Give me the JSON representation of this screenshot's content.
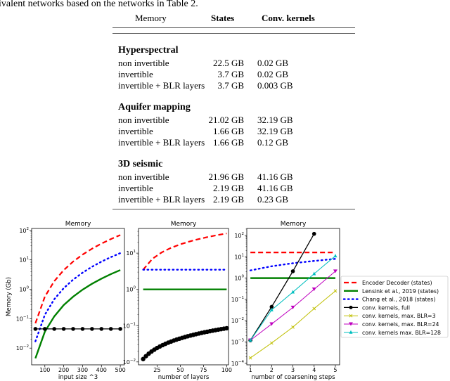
{
  "intro_text": "ivalent networks based on the networks in Table 2.",
  "table": {
    "headers": [
      "Memory",
      "States",
      "Conv. kernels"
    ],
    "sections": [
      {
        "title": "Hyperspectral",
        "rows": [
          [
            "non invertible",
            "22.5 GB",
            "0.02 GB"
          ],
          [
            "invertible",
            "3.7 GB",
            "0.02 GB"
          ],
          [
            "invertible + BLR layers",
            "3.7 GB",
            "0.003 GB"
          ]
        ]
      },
      {
        "title": "Aquifer mapping",
        "rows": [
          [
            "non invertible",
            "21.02 GB",
            "32.19 GB"
          ],
          [
            "invertible",
            "1.66 GB",
            "32.19 GB"
          ],
          [
            "invertible + BLR layers",
            "1.66 GB",
            "0.12 GB"
          ]
        ]
      },
      {
        "title": "3D seismic",
        "rows": [
          [
            "non invertible",
            "21.96 GB",
            "41.16 GB"
          ],
          [
            "invertible",
            "2.19 GB",
            "41.16 GB"
          ],
          [
            "invertible + BLR layers",
            "2.19 GB",
            "0.23 GB"
          ]
        ]
      }
    ]
  },
  "chart_data": [
    {
      "type": "line",
      "title": "Memory",
      "xlabel": "input size ^3",
      "ylabel": "Memory (Gb)",
      "yscale": "log",
      "xlim": [
        30,
        522
      ],
      "ylim": [
        0.0027,
        117
      ],
      "xticks": [
        100,
        200,
        300,
        400,
        500
      ],
      "yticks": [
        -2,
        -1,
        0,
        1,
        2
      ],
      "series": [
        {
          "key": "enc",
          "x": [
            50,
            100,
            150,
            200,
            250,
            300,
            350,
            400,
            450,
            500
          ],
          "y": [
            0.07,
            0.56,
            1.89,
            4.48,
            8.75,
            15.1,
            24.0,
            35.8,
            51.0,
            70
          ]
        },
        {
          "key": "chang",
          "x": [
            50,
            100,
            150,
            200,
            250,
            300,
            350,
            400,
            450,
            500
          ],
          "y": [
            0.017,
            0.136,
            0.46,
            1.09,
            2.13,
            3.67,
            5.83,
            8.7,
            12.4,
            17
          ]
        },
        {
          "key": "lens",
          "x": [
            50,
            100,
            150,
            200,
            250,
            300,
            350,
            400,
            450,
            500
          ],
          "y": [
            0.0045,
            0.036,
            0.12,
            0.29,
            0.56,
            0.97,
            1.54,
            2.3,
            3.28,
            4.5
          ]
        },
        {
          "key": "full",
          "x": [
            50,
            100,
            150,
            200,
            250,
            300,
            350,
            400,
            450,
            500
          ],
          "y": [
            0.045,
            0.045,
            0.045,
            0.045,
            0.045,
            0.045,
            0.045,
            0.045,
            0.045,
            0.045
          ]
        }
      ]
    },
    {
      "type": "line",
      "title": "Memory",
      "xlabel": "number of layers",
      "ylabel": "",
      "yscale": "log",
      "xlim": [
        5,
        102
      ],
      "ylim": [
        0.0083,
        48
      ],
      "xticks": [
        25,
        50,
        75,
        100
      ],
      "yticks": [
        -2,
        -1,
        0,
        1
      ],
      "series": [
        {
          "key": "enc",
          "x": [
            10,
            20,
            30,
            40,
            50,
            60,
            70,
            80,
            90,
            100
          ],
          "y": [
            3.5,
            7,
            10.5,
            14,
            17.5,
            21,
            24.5,
            28,
            31.5,
            35
          ]
        },
        {
          "key": "chang",
          "x": [
            10,
            100
          ],
          "y": [
            3.5,
            3.5
          ]
        },
        {
          "key": "lens",
          "x": [
            10,
            100
          ],
          "y": [
            1.0,
            1.0
          ]
        },
        {
          "key": "full",
          "x": [
            10,
            13,
            16,
            19,
            22,
            25,
            28,
            31,
            34,
            37,
            40,
            43,
            46,
            49,
            52,
            55,
            58,
            61,
            64,
            67,
            70,
            73,
            76,
            79,
            82,
            85,
            88,
            91,
            94,
            97,
            100
          ],
          "y": [
            0.012,
            0.0144,
            0.0169,
            0.0193,
            0.0217,
            0.0242,
            0.0266,
            0.029,
            0.0315,
            0.0339,
            0.0363,
            0.0388,
            0.0412,
            0.0436,
            0.046,
            0.0485,
            0.0509,
            0.0533,
            0.0558,
            0.0582,
            0.0606,
            0.0631,
            0.0655,
            0.0679,
            0.0704,
            0.0728,
            0.0752,
            0.0777,
            0.0801,
            0.0825,
            0.085
          ]
        }
      ]
    },
    {
      "type": "line",
      "title": "Memory",
      "xlabel": "number of coarsening steps",
      "ylabel": "",
      "yscale": "log",
      "xlim": [
        0.83,
        5.2
      ],
      "ylim": [
        8.5e-05,
        214
      ],
      "xticks": [
        1,
        2,
        3,
        4,
        5
      ],
      "yticks": [
        -4,
        -3,
        -2,
        -1,
        0,
        1,
        2
      ],
      "series": [
        {
          "key": "enc",
          "x": [
            1,
            5
          ],
          "y": [
            16,
            16
          ]
        },
        {
          "key": "chang",
          "x": [
            1,
            2,
            3,
            4,
            5
          ],
          "y": [
            2.3,
            3.6,
            5,
            6.4,
            8
          ]
        },
        {
          "key": "lens",
          "x": [
            1,
            5
          ],
          "y": [
            1.0,
            1.0
          ]
        },
        {
          "key": "full",
          "x": [
            1,
            2,
            3,
            4
          ],
          "y": [
            0.0012,
            0.045,
            2.1,
            120
          ]
        },
        {
          "key": "blr3",
          "x": [
            1,
            2,
            3,
            4,
            5
          ],
          "y": [
            0.00018,
            0.0009,
            0.005,
            0.037,
            0.25
          ]
        },
        {
          "key": "blr24",
          "x": [
            1,
            2,
            3,
            4,
            5
          ],
          "y": [
            0.0012,
            0.007,
            0.042,
            0.3,
            2.1
          ]
        },
        {
          "key": "blr128",
          "x": [
            1,
            2,
            3,
            4,
            5
          ],
          "y": [
            0.0012,
            0.032,
            0.22,
            1.6,
            11
          ]
        }
      ]
    }
  ],
  "legend": {
    "placement": "right",
    "entries": [
      {
        "key": "enc",
        "label": "Encoder Decoder (states)",
        "color": "#ff0000"
      },
      {
        "key": "lens",
        "label": "Lensink et al., 2019 (states)",
        "color": "#008000"
      },
      {
        "key": "chang",
        "label": "Chang et al., 2018 (states)",
        "color": "#0000ff"
      },
      {
        "key": "full",
        "label": "conv. kernels, full",
        "color": "#000000"
      },
      {
        "key": "blr3",
        "label": "conv. kernels, max. BLR=3",
        "color": "#bfbf00"
      },
      {
        "key": "blr24",
        "label": "conv. kernels, max. BLR=24",
        "color": "#bf00bf"
      },
      {
        "key": "blr128",
        "label": "conv. kernels max. BLR=128",
        "color": "#00bfbf"
      }
    ]
  }
}
